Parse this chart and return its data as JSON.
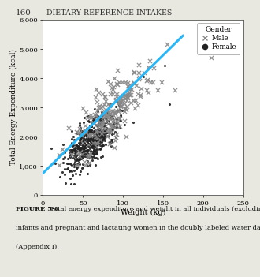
{
  "title_page": "160",
  "title_header": "DIETARY REFERENCE INTAKES",
  "xlabel": "Weight (kg)",
  "ylabel": "Total Energy Expenditure (kcal)",
  "xlim": [
    0,
    250
  ],
  "ylim": [
    0,
    6000
  ],
  "xticks": [
    0,
    50,
    100,
    150,
    200,
    250
  ],
  "yticks": [
    0,
    1000,
    2000,
    3000,
    4000,
    5000,
    6000
  ],
  "ytick_labels": [
    "0",
    "1,000",
    "2,000",
    "3,000",
    "4,000",
    "5,000",
    "6,000"
  ],
  "line_color": "#29B6F6",
  "line_x": [
    0,
    175
  ],
  "line_y": [
    750,
    5450
  ],
  "male_color": "#888888",
  "female_color": "#222222",
  "legend_title": "Gender",
  "legend_male": "Male",
  "legend_female": "Female",
  "page_bg": "#e8e8e0",
  "plot_bg": "#ffffff",
  "seed": 42,
  "n_female": 500,
  "n_male": 220,
  "caption_bold": "FIGURE 5-8",
  "caption_rest": "  Total energy expenditure and weight in all individuals (excluding infants and pregnant and lactating women in the doubly labeled water database (Appendix I)."
}
